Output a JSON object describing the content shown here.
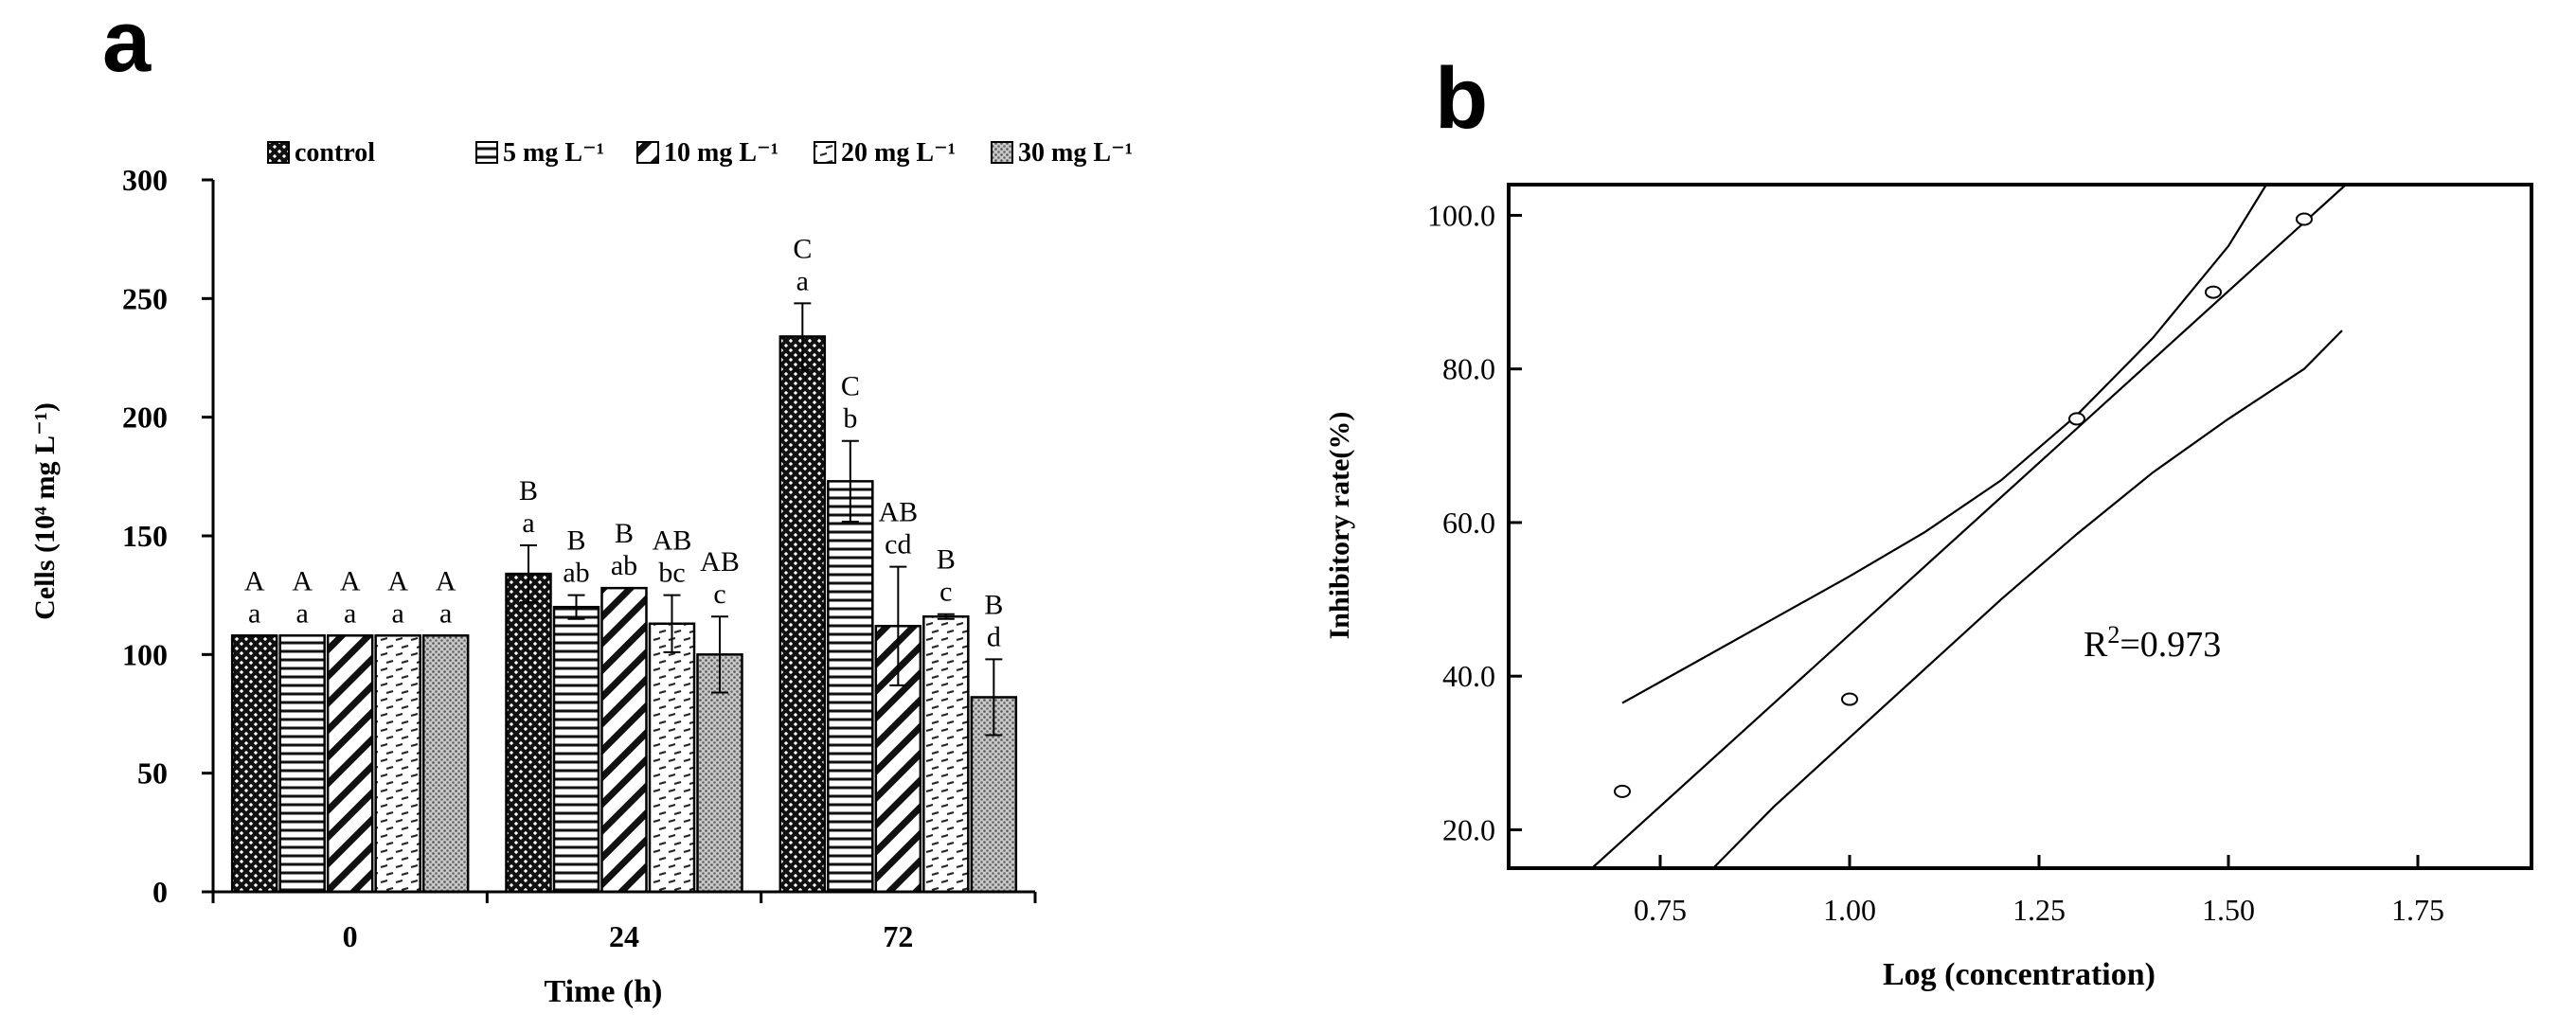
{
  "panel_a_label": "a",
  "panel_b_label": "b",
  "chart_data": [
    {
      "type": "bar",
      "xlabel": "Time (h)",
      "ylabel": "Cells (10⁴ mg L⁻¹)",
      "ylim": [
        0,
        300
      ],
      "yticks": [
        "0",
        "50",
        "100",
        "150",
        "200",
        "250",
        "300"
      ],
      "categories": [
        "0",
        "24",
        "72"
      ],
      "legend_position": "top",
      "series": [
        {
          "name": "control",
          "pattern": "crosshatch",
          "values": [
            108,
            134,
            234
          ],
          "errors": [
            0,
            12,
            14
          ],
          "upper_labels": [
            "A",
            "B",
            "C"
          ],
          "lower_labels": [
            "a",
            "a",
            "a"
          ]
        },
        {
          "name": "5 mg L⁻¹",
          "pattern": "horizontal",
          "values": [
            108,
            120,
            173
          ],
          "errors": [
            0,
            5,
            17
          ],
          "upper_labels": [
            "A",
            "B",
            "C"
          ],
          "lower_labels": [
            "a",
            "ab",
            "b"
          ]
        },
        {
          "name": "10 mg L⁻¹",
          "pattern": "diagonal",
          "values": [
            108,
            128,
            112
          ],
          "errors": [
            0,
            0,
            25
          ],
          "upper_labels": [
            "A",
            "B",
            "AB"
          ],
          "lower_labels": [
            "a",
            "ab",
            "cd"
          ]
        },
        {
          "name": "20 mg L⁻¹",
          "pattern": "dotted",
          "values": [
            108,
            113,
            116
          ],
          "errors": [
            0,
            12,
            1
          ],
          "upper_labels": [
            "A",
            "AB",
            "B"
          ],
          "lower_labels": [
            "a",
            "bc",
            "c"
          ]
        },
        {
          "name": "30 mg L⁻¹",
          "pattern": "dense",
          "values": [
            108,
            100,
            82
          ],
          "errors": [
            0,
            16,
            16
          ],
          "upper_labels": [
            "A",
            "AB",
            "B"
          ],
          "lower_labels": [
            "a",
            "c",
            "d"
          ]
        }
      ]
    },
    {
      "type": "scatter",
      "xlabel": "Log (concentration)",
      "ylabel": "Inhibitory rate(%)",
      "xlim": [
        0.55,
        1.9
      ],
      "ylim": [
        15,
        104
      ],
      "xticks": [
        "0.75",
        "1.00",
        "1.25",
        "1.50",
        "1.75"
      ],
      "yticks": [
        "20.0",
        "40.0",
        "60.0",
        "80.0",
        "100.0"
      ],
      "points": [
        {
          "x": 0.7,
          "y": 25.0
        },
        {
          "x": 1.0,
          "y": 37.0
        },
        {
          "x": 1.3,
          "y": 73.5
        },
        {
          "x": 1.48,
          "y": 90.0
        },
        {
          "x": 1.6,
          "y": 99.5
        }
      ],
      "fit_line": [
        [
          0.66,
          15.0
        ],
        [
          1.655,
          104.0
        ]
      ],
      "upper_band": [
        [
          0.7,
          36.5
        ],
        [
          0.8,
          42.0
        ],
        [
          0.9,
          47.5
        ],
        [
          1.0,
          53.0
        ],
        [
          1.1,
          58.8
        ],
        [
          1.2,
          65.5
        ],
        [
          1.3,
          74.0
        ],
        [
          1.4,
          84.0
        ],
        [
          1.5,
          96.0
        ],
        [
          1.55,
          104.0
        ]
      ],
      "lower_band": [
        [
          0.82,
          15.0
        ],
        [
          0.9,
          23.0
        ],
        [
          1.0,
          32.0
        ],
        [
          1.1,
          41.0
        ],
        [
          1.2,
          50.0
        ],
        [
          1.3,
          58.5
        ],
        [
          1.4,
          66.5
        ],
        [
          1.5,
          73.5
        ],
        [
          1.6,
          80.0
        ],
        [
          1.65,
          85.0
        ]
      ],
      "annotation": "R²=0.973"
    }
  ]
}
